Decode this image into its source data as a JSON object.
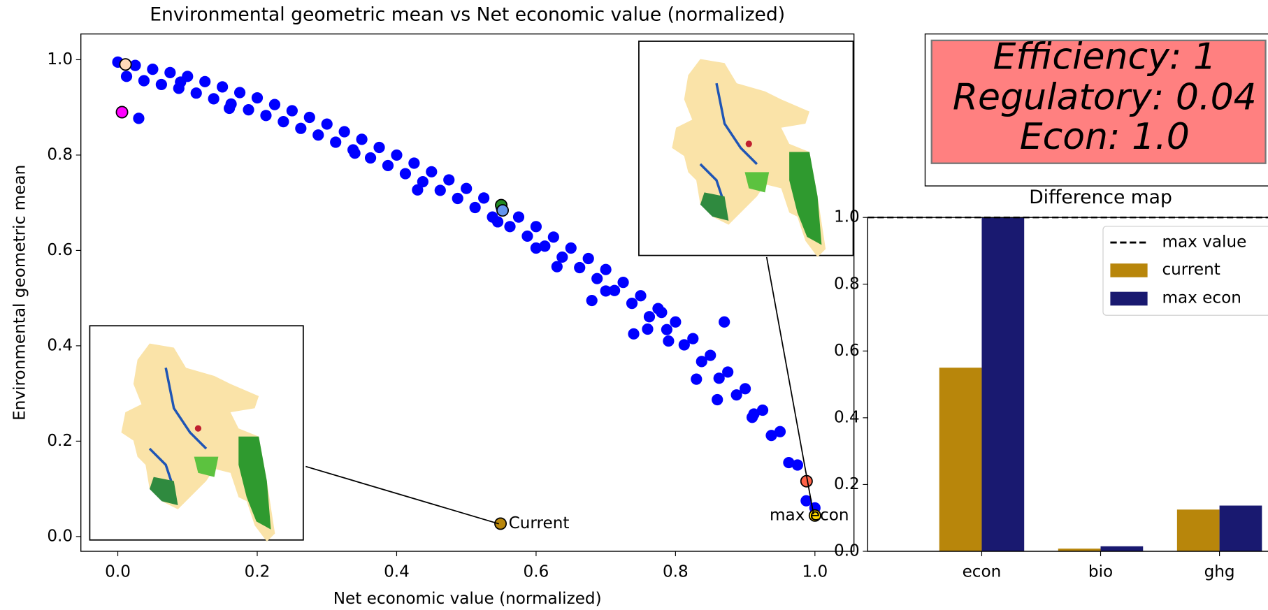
{
  "chart_data": [
    {
      "type": "scatter",
      "title": "Environmental geometric mean vs Net economic value (normalized)",
      "x_label": "Net economic value (normalized)",
      "y_label": "Environmental geometric mean",
      "xlim": [
        -0.053,
        1.056
      ],
      "ylim": [
        -0.031,
        1.054
      ],
      "xticks": [
        {
          "value": 0,
          "label": "0.0"
        },
        {
          "value": 0.2,
          "label": "0.2"
        },
        {
          "value": 0.4,
          "label": "0.4"
        },
        {
          "value": 0.6,
          "label": "0.6"
        },
        {
          "value": 0.8,
          "label": "0.8"
        },
        {
          "value": 1,
          "label": "1.0"
        }
      ],
      "yticks": [
        {
          "value": 0,
          "label": "0.0"
        },
        {
          "value": 0.2,
          "label": "0.2"
        },
        {
          "value": 0.4,
          "label": "0.4"
        },
        {
          "value": 0.6,
          "label": "0.6"
        },
        {
          "value": 0.8,
          "label": "0.8"
        },
        {
          "value": 1,
          "label": "1.0"
        }
      ],
      "series": [
        {
          "color": "#0000ff",
          "x": [
            0,
            0.025,
            0.05,
            0.075,
            0.1,
            0.125,
            0.15,
            0.175,
            0.2,
            0.225,
            0.25,
            0.275,
            0.3,
            0.325,
            0.35,
            0.375,
            0.4,
            0.425,
            0.45,
            0.475,
            0.5,
            0.525,
            0.55,
            0.575,
            0.6,
            0.625,
            0.65,
            0.675,
            0.7,
            0.725,
            0.75,
            0.775,
            0.8,
            0.825,
            0.85,
            0.875,
            0.9,
            0.925,
            0.95,
            0.975,
            1.0,
            0.0125,
            0.0375,
            0.0625,
            0.0875,
            0.1125,
            0.1375,
            0.1625,
            0.1875,
            0.2125,
            0.2375,
            0.2625,
            0.2875,
            0.3125,
            0.3375,
            0.3625,
            0.3875,
            0.4125,
            0.4375,
            0.4625,
            0.4875,
            0.5125,
            0.5375,
            0.5625,
            0.5875,
            0.6125,
            0.6375,
            0.6625,
            0.6875,
            0.7125,
            0.7375,
            0.7625,
            0.7875,
            0.8125,
            0.8375,
            0.8625,
            0.8875,
            0.9125,
            0.9375,
            0.9625,
            0.9875,
            0.03,
            0.16,
            0.09,
            0.34,
            0.43,
            0.545,
            0.6,
            0.63,
            0.68,
            0.7,
            0.74,
            0.76,
            0.79,
            0.83,
            0.86,
            0.91,
            0.87,
            0.78
          ],
          "y": [
            0.995,
            0.988,
            0.98,
            0.973,
            0.965,
            0.954,
            0.943,
            0.931,
            0.92,
            0.906,
            0.893,
            0.879,
            0.865,
            0.849,
            0.833,
            0.816,
            0.8,
            0.783,
            0.765,
            0.748,
            0.73,
            0.71,
            0.69,
            0.67,
            0.65,
            0.628,
            0.605,
            0.583,
            0.56,
            0.533,
            0.505,
            0.478,
            0.45,
            0.415,
            0.38,
            0.345,
            0.31,
            0.265,
            0.22,
            0.15,
            0.06,
            0.965,
            0.956,
            0.948,
            0.94,
            0.93,
            0.918,
            0.907,
            0.895,
            0.883,
            0.87,
            0.856,
            0.842,
            0.827,
            0.811,
            0.794,
            0.778,
            0.761,
            0.744,
            0.726,
            0.709,
            0.69,
            0.67,
            0.65,
            0.63,
            0.609,
            0.586,
            0.564,
            0.541,
            0.516,
            0.489,
            0.461,
            0.434,
            0.402,
            0.367,
            0.332,
            0.297,
            0.257,
            0.212,
            0.155,
            0.075,
            0.877,
            0.898,
            0.953,
            0.804,
            0.727,
            0.66,
            0.605,
            0.566,
            0.495,
            0.515,
            0.425,
            0.435,
            0.41,
            0.33,
            0.287,
            0.25,
            0.45,
            0.47
          ]
        },
        {
          "color": "#ff00ff",
          "x": [
            0.006
          ],
          "y": [
            0.89
          ]
        },
        {
          "color": "#ffdab9",
          "x": [
            0.011
          ],
          "y": [
            0.99
          ]
        },
        {
          "color": "#228b22",
          "x": [
            0.55
          ],
          "y": [
            0.695
          ]
        },
        {
          "color": "#6495ed",
          "x": [
            0.552
          ],
          "y": [
            0.684
          ]
        },
        {
          "color": "#ff6347",
          "x": [
            0.988
          ],
          "y": [
            0.116
          ]
        },
        {
          "color": "#b8860b",
          "x": [
            0.549
          ],
          "y": [
            0.027
          ],
          "label": "Current"
        },
        {
          "color": "#ffd700",
          "x": [
            1.0
          ],
          "y": [
            0.044
          ],
          "label": "max econ"
        }
      ]
    },
    {
      "type": "bar",
      "title": "Difference map",
      "categories": [
        "econ",
        "bio",
        "ghg"
      ],
      "ylim": [
        0,
        1.0
      ],
      "yticks": [
        {
          "value": 0,
          "label": "0.0"
        },
        {
          "value": 0.2,
          "label": "0.2"
        },
        {
          "value": 0.4,
          "label": "0.4"
        },
        {
          "value": 0.6,
          "label": "0.6"
        },
        {
          "value": 0.8,
          "label": "0.8"
        },
        {
          "value": 1,
          "label": "1.0"
        }
      ],
      "max_line": {
        "value": 1.0,
        "label": "max value"
      },
      "legend": "upper right",
      "series": [
        {
          "name": "current",
          "color": "#b8860b",
          "values": [
            0.55,
            0.008,
            0.125
          ]
        },
        {
          "name": "max econ",
          "color": "#191970",
          "values": [
            1.0,
            0.015,
            0.137
          ]
        }
      ]
    }
  ],
  "info_box": {
    "lines": [
      "Efficiency: 1",
      "Regulatory: 0.04",
      "Econ: 1.0"
    ]
  }
}
